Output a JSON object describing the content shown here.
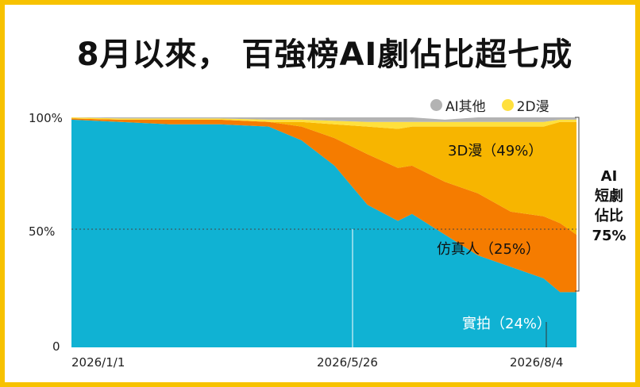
{
  "title": "8月以來，  百強榜AI劇佔比超七成",
  "legend": [
    {
      "label": "AI其他",
      "color": "#b3b3b3"
    },
    {
      "label": "2D漫",
      "color": "#ffe03d"
    }
  ],
  "y_ticks": [
    "100%",
    "50%",
    "0"
  ],
  "x_ticks": [
    "2026/1/1",
    "2026/5/26",
    "2026/8/4"
  ],
  "labels": {
    "d3": "3D漫（49%）",
    "real": "仿真人（25%）",
    "live": "實拍（24%）",
    "ai_line1": "AI",
    "ai_line2": "短劇",
    "ai_line3": "佔比",
    "ai_line4": "75%"
  },
  "colors": {
    "live": "#10b2d3",
    "real": "#f57c00",
    "d3": "#f7b500",
    "d2": "#ffe03d",
    "other": "#b3b3b3",
    "frame": "#f7c200"
  },
  "chart_data": {
    "type": "area",
    "stacked": true,
    "x_start": "2026/1/1",
    "x_end": "2026/8/4",
    "x": [
      "2026/1/1",
      "2026/1/22",
      "2026/2/12",
      "2026/3/5",
      "2026/3/26",
      "2026/4/9",
      "2026/4/23",
      "2026/5/7",
      "2026/5/20",
      "2026/5/26",
      "2026/6/9",
      "2026/6/23",
      "2026/7/7",
      "2026/7/21",
      "2026/7/28",
      "2026/8/4"
    ],
    "ylim": [
      0,
      1
    ],
    "series": [
      {
        "name": "實拍",
        "values": [
          0.99,
          0.98,
          0.97,
          0.97,
          0.96,
          0.9,
          0.79,
          0.62,
          0.55,
          0.58,
          0.49,
          0.4,
          0.35,
          0.3,
          0.24,
          0.24
        ]
      },
      {
        "name": "仿真人",
        "values": [
          0.005,
          0.01,
          0.02,
          0.02,
          0.02,
          0.06,
          0.12,
          0.22,
          0.23,
          0.21,
          0.23,
          0.27,
          0.24,
          0.27,
          0.3,
          0.25
        ]
      },
      {
        "name": "3D漫",
        "values": [
          0.0,
          0.0,
          0.0,
          0.0,
          0.0,
          0.02,
          0.06,
          0.12,
          0.17,
          0.17,
          0.24,
          0.29,
          0.37,
          0.39,
          0.44,
          0.49
        ]
      },
      {
        "name": "2D漫",
        "values": [
          0.005,
          0.005,
          0.005,
          0.005,
          0.01,
          0.01,
          0.015,
          0.02,
          0.03,
          0.02,
          0.02,
          0.02,
          0.02,
          0.02,
          0.01,
          0.01
        ]
      },
      {
        "name": "AI其他",
        "values": [
          0.0,
          0.005,
          0.005,
          0.005,
          0.01,
          0.01,
          0.015,
          0.02,
          0.02,
          0.02,
          0.01,
          0.02,
          0.02,
          0.02,
          0.01,
          0.01
        ]
      }
    ],
    "annotations": [
      "3D漫（49%）",
      "仿真人（25%）",
      "實拍（24%）",
      "AI短劇佔比75%"
    ]
  }
}
